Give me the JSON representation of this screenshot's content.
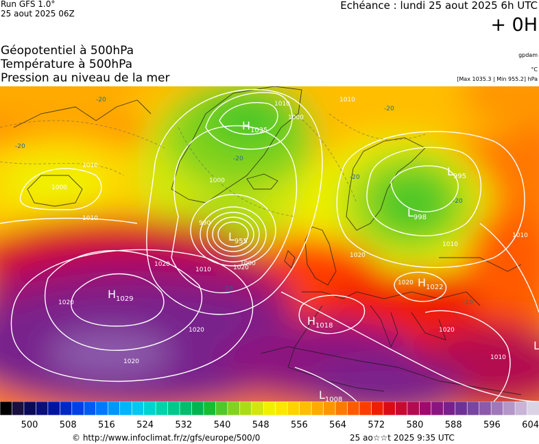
{
  "header": {
    "run": "Run GFS 1.0°",
    "run_date": "25 aout 2025 06Z",
    "valid": "Echéance : lundi 25 aout 2025 6h UTC",
    "lead": "+ 0H",
    "unit_gpdam": "gpdam",
    "unit_degc": "°C",
    "extremes": "[Max 1035.3 | Min 955.2] hPa"
  },
  "titles": {
    "line1": "Géopotentiel à 500hPa",
    "line2": "Température à 500hPa",
    "line3": "Pression au niveau de la mer"
  },
  "centers": [
    {
      "kind": "H",
      "value": "1035"
    },
    {
      "kind": "L",
      "value": "995"
    },
    {
      "kind": "L",
      "value": "998"
    },
    {
      "kind": "L",
      "value": "955"
    },
    {
      "kind": "H",
      "value": "1029"
    },
    {
      "kind": "H",
      "value": "1022"
    },
    {
      "kind": "H",
      "value": "1018"
    },
    {
      "kind": "L",
      "value": "1008"
    },
    {
      "kind": "L",
      "value": ""
    }
  ],
  "isobar_labels": [
    "1000",
    "1010",
    "1010",
    "1020",
    "1000",
    "990",
    "1010",
    "1020",
    "1020",
    "1010",
    "1010",
    "1010",
    "1000",
    "1020",
    "1020",
    "1020",
    "1010",
    "1020",
    "1020",
    "1000",
    "1010"
  ],
  "temp_labels": [
    "-20",
    "-20",
    "-20",
    "-20",
    "-20",
    "-20",
    "-10",
    "-10"
  ],
  "legend": {
    "colors": [
      "#000000",
      "#1a0f3f",
      "#0a0a5a",
      "#0a0f7a",
      "#0014a0",
      "#0028c8",
      "#0040e6",
      "#005af5",
      "#0078ff",
      "#0096ff",
      "#00b4ff",
      "#00c8f0",
      "#00d2d2",
      "#00d2aa",
      "#00c88c",
      "#00be6e",
      "#00b450",
      "#14be32",
      "#50c828",
      "#82d21e",
      "#aadc14",
      "#d2e60a",
      "#f0f000",
      "#ffe600",
      "#ffd200",
      "#ffbe00",
      "#ffaa00",
      "#ff9600",
      "#ff7800",
      "#ff5a00",
      "#ff3c00",
      "#f01e00",
      "#dc0a14",
      "#c80a32",
      "#b40a50",
      "#a00a6e",
      "#8c1480",
      "#78208c",
      "#6e3296",
      "#7846a0",
      "#8c5aaa",
      "#a078b9",
      "#b496c8",
      "#c8b4d7",
      "#dcd2e6"
    ],
    "ticks": [
      "500",
      "508",
      "516",
      "524",
      "532",
      "540",
      "548",
      "556",
      "564",
      "572",
      "580",
      "588",
      "596",
      "604"
    ]
  },
  "footer": {
    "source": "© http://www.infoclimat.fr/z/gfs/europe/500/0",
    "generated": "25 ao☆☆t 2025  9:35 UTC"
  }
}
